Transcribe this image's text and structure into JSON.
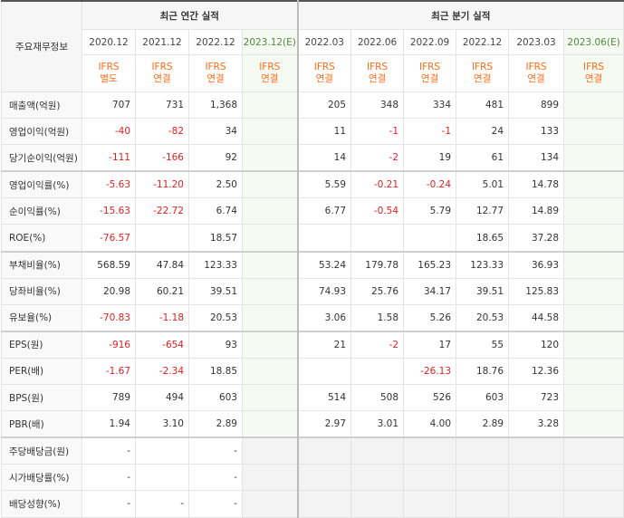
{
  "header": {
    "corner_label": "주요재무정보",
    "annual_title": "최근 연간 실적",
    "quarter_title": "최근 분기 실적",
    "annual_periods": [
      "2020.12",
      "2021.12",
      "2022.12",
      "2023.12(E)"
    ],
    "quarter_periods": [
      "2022.03",
      "2022.06",
      "2022.09",
      "2022.12",
      "2023.03",
      "2023.06(E)"
    ],
    "annual_ifrs": [
      {
        "l1": "IFRS",
        "l2": "별도"
      },
      {
        "l1": "IFRS",
        "l2": "연결"
      },
      {
        "l1": "IFRS",
        "l2": "연결"
      },
      {
        "l1": "IFRS",
        "l2": "연결"
      }
    ],
    "quarter_ifrs": [
      {
        "l1": "IFRS",
        "l2": "연결"
      },
      {
        "l1": "IFRS",
        "l2": "연결"
      },
      {
        "l1": "IFRS",
        "l2": "연결"
      },
      {
        "l1": "IFRS",
        "l2": "연결"
      },
      {
        "l1": "IFRS",
        "l2": "연결"
      },
      {
        "l1": "IFRS",
        "l2": "연결"
      }
    ]
  },
  "rows": [
    {
      "label": "매출액(억원)",
      "annual": [
        "707",
        "731",
        "1,368",
        ""
      ],
      "quarter": [
        "205",
        "348",
        "334",
        "481",
        "899",
        ""
      ]
    },
    {
      "label": "영업이익(억원)",
      "annual": [
        "-40",
        "-82",
        "34",
        ""
      ],
      "quarter": [
        "11",
        "-1",
        "-1",
        "24",
        "133",
        ""
      ]
    },
    {
      "label": "당기순이익(억원)",
      "annual": [
        "-111",
        "-166",
        "92",
        ""
      ],
      "quarter": [
        "14",
        "-2",
        "19",
        "61",
        "134",
        ""
      ]
    },
    {
      "label": "영업이익률(%)",
      "annual": [
        "-5.63",
        "-11.20",
        "2.50",
        ""
      ],
      "quarter": [
        "5.59",
        "-0.21",
        "-0.24",
        "5.01",
        "14.78",
        ""
      ]
    },
    {
      "label": "순이익률(%)",
      "annual": [
        "-15.63",
        "-22.72",
        "6.74",
        ""
      ],
      "quarter": [
        "6.77",
        "-0.54",
        "5.79",
        "12.77",
        "14.89",
        ""
      ]
    },
    {
      "label": "ROE(%)",
      "annual": [
        "-76.57",
        "",
        "18.57",
        ""
      ],
      "quarter": [
        "",
        "",
        "",
        "18.65",
        "37.28",
        ""
      ]
    },
    {
      "label": "부채비율(%)",
      "annual": [
        "568.59",
        "47.84",
        "123.33",
        ""
      ],
      "quarter": [
        "53.24",
        "179.78",
        "165.23",
        "123.33",
        "36.93",
        ""
      ]
    },
    {
      "label": "당좌비율(%)",
      "annual": [
        "20.98",
        "60.21",
        "39.51",
        ""
      ],
      "quarter": [
        "74.93",
        "25.76",
        "34.17",
        "39.51",
        "125.83",
        ""
      ]
    },
    {
      "label": "유보율(%)",
      "annual": [
        "-70.83",
        "-1.18",
        "20.53",
        ""
      ],
      "quarter": [
        "3.06",
        "1.58",
        "5.26",
        "20.53",
        "44.58",
        ""
      ]
    },
    {
      "label": "EPS(원)",
      "annual": [
        "-916",
        "-654",
        "93",
        ""
      ],
      "quarter": [
        "21",
        "-2",
        "17",
        "55",
        "120",
        ""
      ]
    },
    {
      "label": "PER(배)",
      "annual": [
        "-1.67",
        "-2.34",
        "18.85",
        ""
      ],
      "quarter": [
        "",
        "",
        "-26.13",
        "18.76",
        "12.36",
        ""
      ]
    },
    {
      "label": "BPS(원)",
      "annual": [
        "789",
        "494",
        "603",
        ""
      ],
      "quarter": [
        "514",
        "508",
        "526",
        "603",
        "723",
        ""
      ]
    },
    {
      "label": "PBR(배)",
      "annual": [
        "1.94",
        "3.10",
        "2.89",
        ""
      ],
      "quarter": [
        "2.97",
        "3.01",
        "4.00",
        "2.89",
        "3.28",
        ""
      ]
    },
    {
      "label": "주당배당금(원)",
      "annual": [
        "-",
        "",
        "-",
        ""
      ],
      "quarter": [
        "",
        "",
        "",
        "",
        "",
        ""
      ]
    },
    {
      "label": "시가배당률(%)",
      "annual": [
        "-",
        "",
        "-",
        ""
      ],
      "quarter": [
        "",
        "",
        "",
        "",
        "",
        ""
      ]
    },
    {
      "label": "배당성향(%)",
      "annual": [
        "-",
        "-",
        "-",
        ""
      ],
      "quarter": [
        "",
        "",
        "",
        "",
        "",
        ""
      ]
    }
  ],
  "colors": {
    "negative": "#e02020",
    "ifrs": "#ff6a13",
    "estimate_text": "#4f8a3a",
    "estimate_bg": "#f5fbf3"
  }
}
